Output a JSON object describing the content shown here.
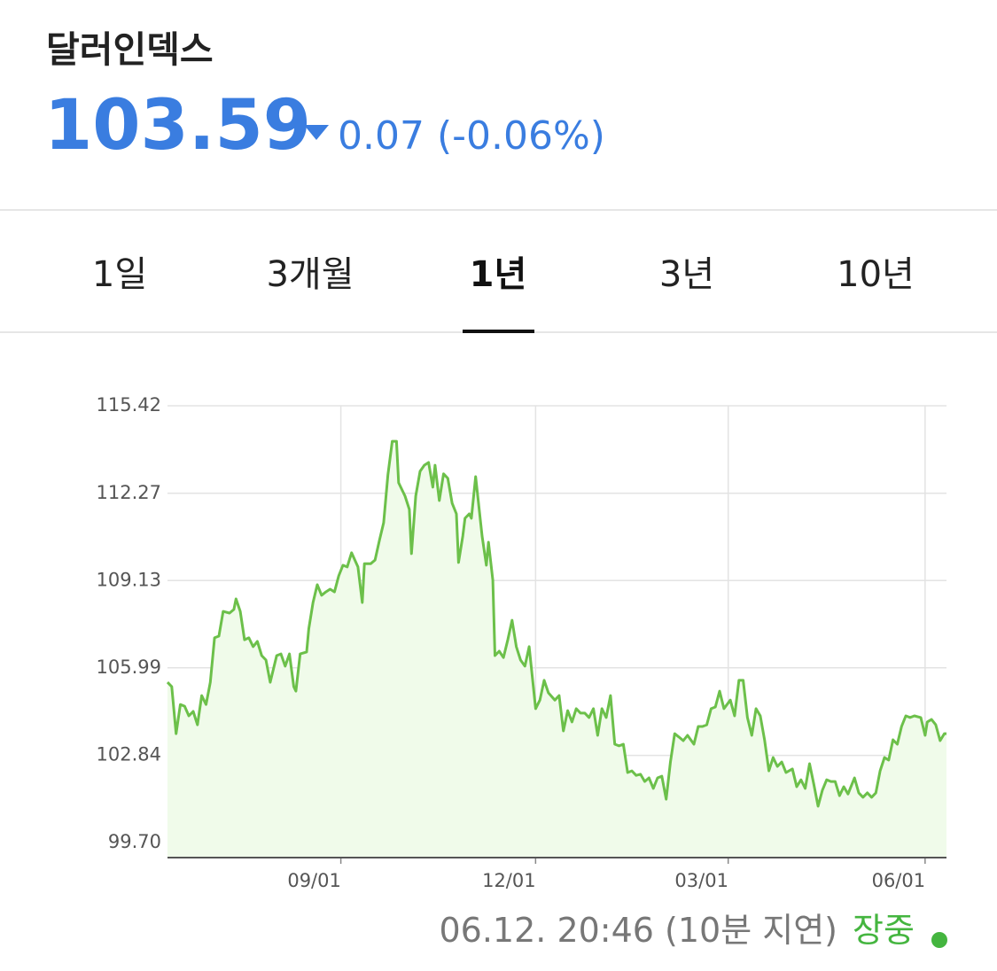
{
  "header": {
    "title": "달러인덱스",
    "price": "103.59",
    "change": "0.07",
    "change_pct": "(-0.06%)"
  },
  "tabs": [
    "1일",
    "3개월",
    "1년",
    "3년",
    "10년"
  ],
  "chart_data": {
    "type": "line",
    "color": "#6cc04a",
    "fill": "#f0fbea",
    "grid": true,
    "xlim": [
      0,
      364
    ],
    "ylim": [
      99.16,
      115.42
    ],
    "xticks": [
      {
        "value": 81,
        "label": "09/01"
      },
      {
        "value": 172,
        "label": "12/01"
      },
      {
        "value": 262,
        "label": "03/01"
      },
      {
        "value": 354,
        "label": "06/01"
      }
    ],
    "yticks": [
      {
        "value": 99.7,
        "label": "99.70"
      },
      102.84,
      105.99,
      109.13,
      112.27,
      115.42
    ],
    "x": [
      0,
      2,
      4,
      6,
      8,
      10,
      12,
      14,
      16,
      18,
      20,
      22,
      24,
      26,
      29,
      31,
      32,
      34,
      36,
      38,
      40,
      42,
      44,
      46,
      48,
      51,
      53,
      55,
      57,
      59,
      60,
      62,
      65,
      66,
      68,
      70,
      72,
      74,
      76,
      78,
      80,
      82,
      84,
      86,
      89,
      91,
      92,
      95,
      97,
      99,
      101,
      103,
      105,
      107,
      108,
      111,
      113,
      114,
      116,
      118,
      120,
      122,
      124,
      125,
      127,
      129,
      131,
      133,
      135,
      136,
      138,
      139,
      141,
      142,
      144,
      147,
      149,
      150,
      152,
      153,
      155,
      157,
      159,
      161,
      163,
      165,
      167,
      169,
      172,
      174,
      176,
      178,
      181,
      183,
      185,
      187,
      189,
      191,
      193,
      195,
      197,
      199,
      201,
      203,
      205,
      207,
      209,
      211,
      213,
      215,
      217,
      219,
      221,
      223,
      225,
      227,
      229,
      231,
      233,
      235,
      237,
      239,
      241,
      243,
      246,
      248,
      250,
      252,
      254,
      256,
      258,
      260,
      263,
      265,
      267,
      269,
      271,
      273,
      275,
      277,
      279,
      281,
      283,
      285,
      287,
      289,
      292,
      294,
      296,
      298,
      300,
      302,
      304,
      306,
      308,
      310,
      312,
      314,
      316,
      318,
      321,
      323,
      325,
      327,
      329,
      331,
      333,
      335,
      337,
      339,
      341,
      343,
      345,
      347,
      349,
      352,
      354,
      355,
      357,
      359,
      361,
      363,
      364
    ],
    "values": [
      105.47,
      105.31,
      103.62,
      104.67,
      104.61,
      104.26,
      104.42,
      103.94,
      104.99,
      104.67,
      105.47,
      107.07,
      107.13,
      108.02,
      107.96,
      108.09,
      108.47,
      108.02,
      107.0,
      107.07,
      106.75,
      106.94,
      106.43,
      106.27,
      105.47,
      106.43,
      106.49,
      106.05,
      106.49,
      105.31,
      105.15,
      106.49,
      106.56,
      107.39,
      108.34,
      108.98,
      108.6,
      108.72,
      108.82,
      108.72,
      109.3,
      109.68,
      109.62,
      110.13,
      109.62,
      108.34,
      109.74,
      109.74,
      109.87,
      110.57,
      111.21,
      112.93,
      114.14,
      114.14,
      112.65,
      112.17,
      111.69,
      110.1,
      112.17,
      113.06,
      113.28,
      113.38,
      112.49,
      113.28,
      112.01,
      112.97,
      112.81,
      111.91,
      111.53,
      109.78,
      110.73,
      111.37,
      111.53,
      111.37,
      112.87,
      110.73,
      109.68,
      110.51,
      109.14,
      106.43,
      106.59,
      106.36,
      107.0,
      107.7,
      106.75,
      106.27,
      106.05,
      106.75,
      104.52,
      104.83,
      105.54,
      105.09,
      104.83,
      104.99,
      103.72,
      104.45,
      104.04,
      104.52,
      104.36,
      104.36,
      104.2,
      104.52,
      103.56,
      104.52,
      104.2,
      104.99,
      103.24,
      103.18,
      103.24,
      102.22,
      102.28,
      102.12,
      102.16,
      101.9,
      102.03,
      101.65,
      102.03,
      102.09,
      101.26,
      102.6,
      103.62,
      103.5,
      103.37,
      103.56,
      103.24,
      103.88,
      103.88,
      103.94,
      104.52,
      104.58,
      105.15,
      104.52,
      104.83,
      104.26,
      105.54,
      105.54,
      104.2,
      103.56,
      104.52,
      104.26,
      103.4,
      102.28,
      102.76,
      102.44,
      102.6,
      102.22,
      102.35,
      101.71,
      101.96,
      101.65,
      102.54,
      101.8,
      101.01,
      101.58,
      101.96,
      101.9,
      101.9,
      101.39,
      101.71,
      101.45,
      102.03,
      101.49,
      101.33,
      101.49,
      101.33,
      101.49,
      102.28,
      102.76,
      102.67,
      103.4,
      103.24,
      103.88,
      104.26,
      104.2,
      104.26,
      104.2,
      103.56,
      104.04,
      104.13,
      103.94,
      103.37,
      103.62,
      103.62
    ]
  },
  "footer": {
    "timestamp": "06.12. 20:46 (10분 지연)",
    "status": "장중"
  }
}
